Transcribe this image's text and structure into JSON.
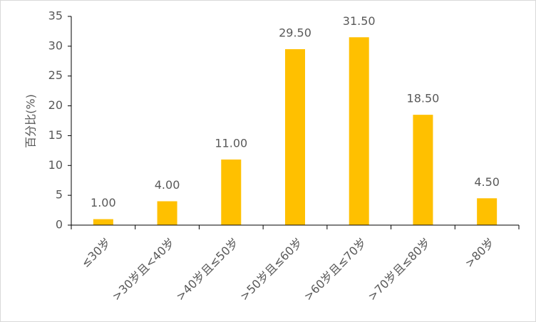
{
  "chart_data": {
    "type": "bar",
    "y_label": "百分比(%)",
    "categories": [
      "≤30岁",
      ">30岁且<40岁",
      ">40岁且≤50岁",
      ">50岁且≤60岁",
      ">60岁且≤70岁",
      ">70岁且≤80岁",
      ">80岁"
    ],
    "values": [
      1,
      4,
      11,
      29.5,
      31.5,
      18.5,
      4.5
    ],
    "value_labels": [
      "1.00",
      "4.00",
      "11.00",
      "29.50",
      "31.50",
      "18.50",
      "4.50"
    ],
    "color": "#ffc000",
    "ylim": [
      0,
      35
    ],
    "yticks": [
      0,
      5,
      10,
      15,
      20,
      25,
      30,
      35
    ],
    "grid": false
  }
}
